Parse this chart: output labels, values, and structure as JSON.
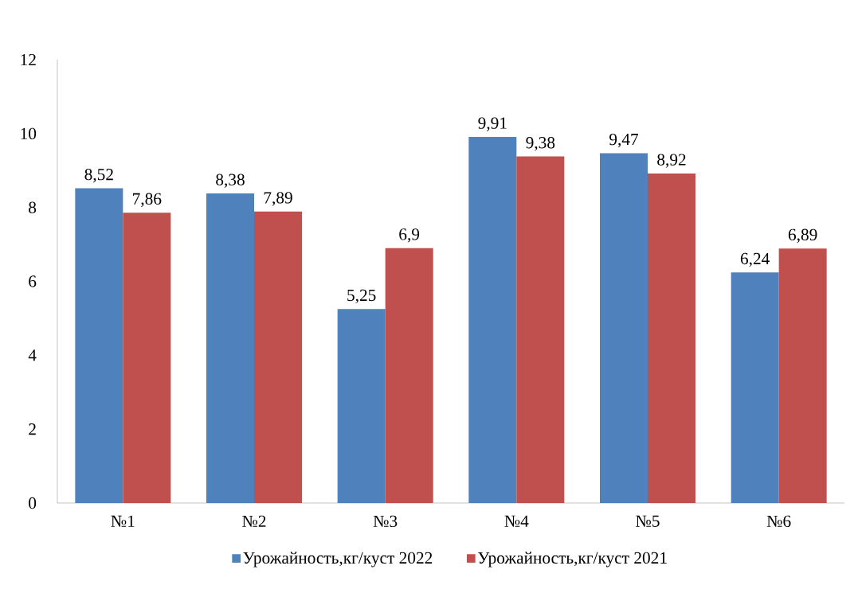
{
  "chart_data": {
    "type": "bar",
    "categories": [
      "№1",
      "№2",
      "№3",
      "№4",
      "№5",
      "№6"
    ],
    "series": [
      {
        "name": "Урожайность,кг/куст 2022",
        "color": "#4f81bd",
        "values": [
          8.52,
          8.38,
          5.25,
          9.91,
          9.47,
          6.24
        ],
        "value_labels": [
          "8,52",
          "8,38",
          "5,25",
          "9,91",
          "9,47",
          "6,24"
        ]
      },
      {
        "name": "Урожайность,кг/куст 2021",
        "color": "#c0504d",
        "values": [
          7.86,
          7.89,
          6.9,
          9.38,
          8.92,
          6.89
        ],
        "value_labels": [
          "7,86",
          "7,89",
          "6,9",
          "9,38",
          "8,92",
          "6,89"
        ]
      }
    ],
    "ylim": [
      0,
      12
    ],
    "yticks": [
      0,
      2,
      4,
      6,
      8,
      10,
      12
    ],
    "grid": false,
    "legend": "bottom"
  }
}
